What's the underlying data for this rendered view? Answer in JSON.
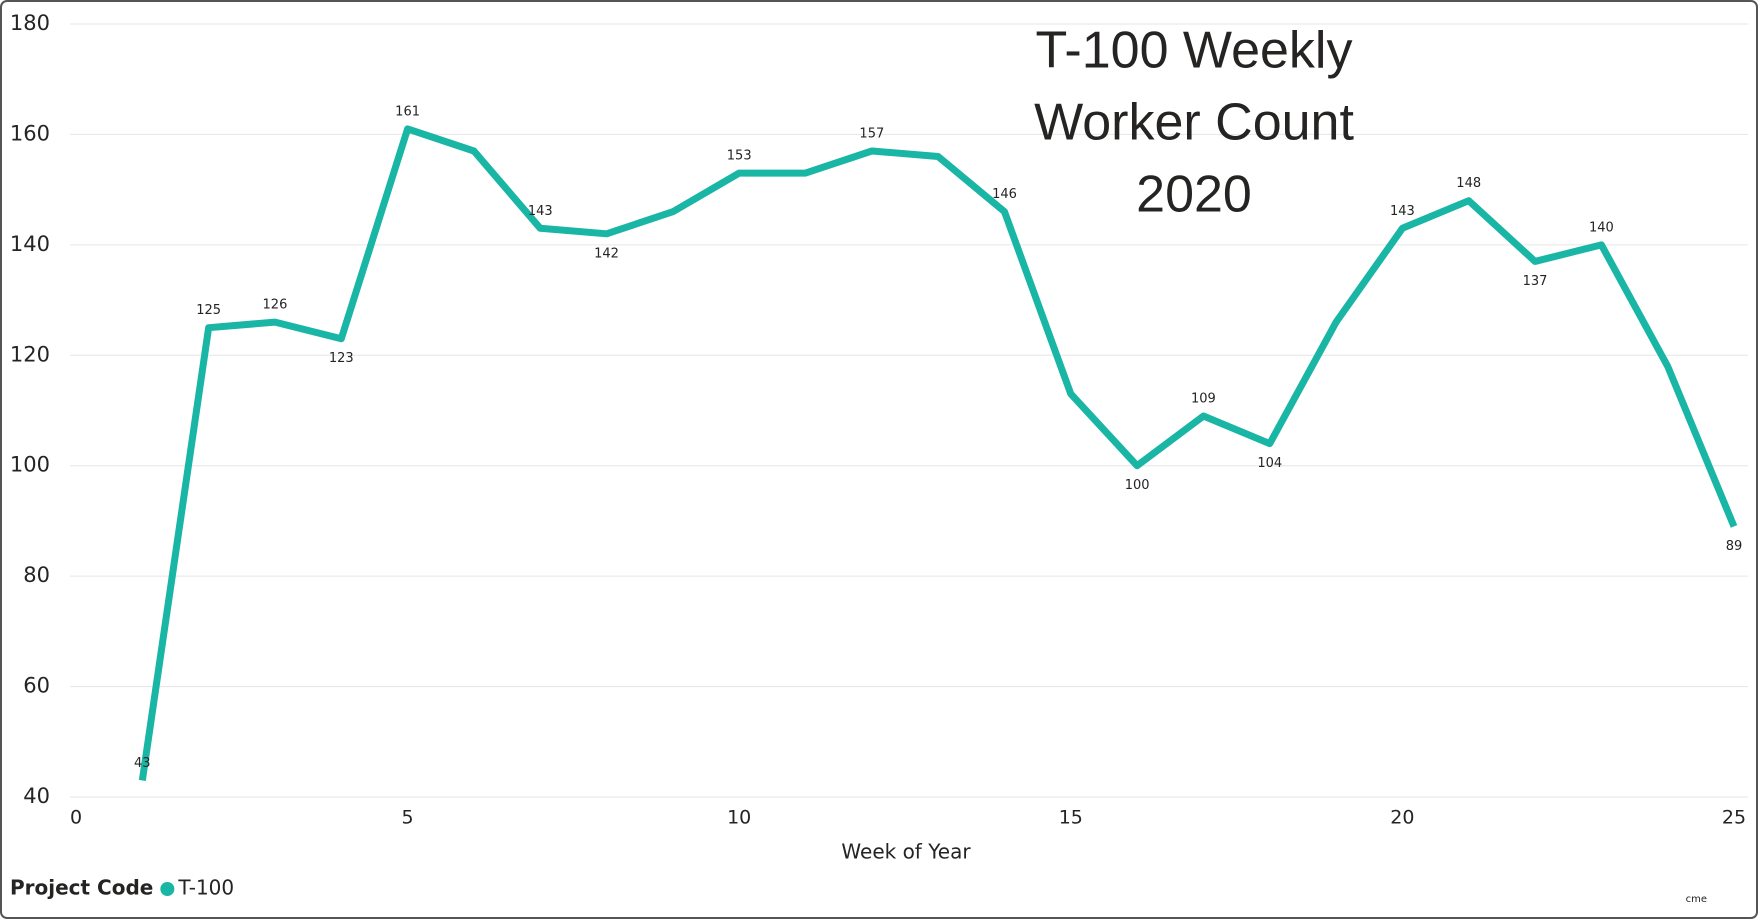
{
  "chart_data": {
    "type": "line",
    "title": [
      "T-100 Weekly",
      "Worker Count",
      "2020"
    ],
    "x_label": "Week of Year",
    "x": [
      1,
      2,
      3,
      4,
      5,
      6,
      7,
      8,
      9,
      10,
      11,
      12,
      13,
      14,
      15,
      16,
      17,
      18,
      19,
      20,
      21,
      22,
      23,
      24,
      25
    ],
    "series": [
      {
        "name": "T-100",
        "color": "#19b5a5",
        "values": [
          43,
          125,
          126,
          123,
          161,
          157,
          143,
          142,
          146,
          153,
          153,
          157,
          156,
          146,
          113,
          100,
          109,
          104,
          126,
          143,
          148,
          137,
          140,
          118,
          89
        ],
        "value_labels": [
          "43",
          "125",
          "126",
          "123",
          "161",
          null,
          "143",
          "142",
          null,
          "153",
          null,
          "157",
          null,
          "146",
          null,
          "100",
          "109",
          "104",
          null,
          "143",
          "148",
          "137",
          "140",
          null,
          "89"
        ]
      }
    ],
    "xlim": [
      0,
      25
    ],
    "xticks": [
      0,
      5,
      10,
      15,
      20,
      25
    ],
    "ylim": [
      40,
      180
    ],
    "yticks": [
      40,
      60,
      80,
      100,
      120,
      140,
      160,
      180
    ],
    "grid": true,
    "legend": {
      "title": "Project Code",
      "position": "bottom-left"
    },
    "footnote": "cme"
  }
}
